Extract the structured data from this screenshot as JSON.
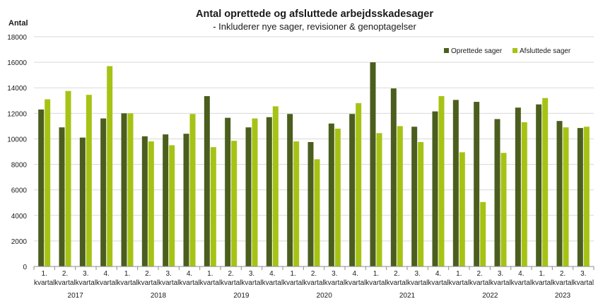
{
  "chart_data": {
    "type": "bar",
    "title": "Antal oprettede og afsluttede arbejdsskadesager",
    "subtitle": "- Inkluderer nye sager, revisioner & genoptagelser",
    "ylabel": "Antal",
    "xlabel": "",
    "ylim": [
      0,
      18000
    ],
    "yticks": [
      "0",
      "2000",
      "4000",
      "6000",
      "8000",
      "10000",
      "12000",
      "14000",
      "16000",
      "18000"
    ],
    "grid": true,
    "legend_position": "top-right",
    "categories": [
      {
        "q1": "1.",
        "q2": "kvartal"
      },
      {
        "q1": "2.",
        "q2": "kvartal"
      },
      {
        "q1": "3.",
        "q2": "kvartal"
      },
      {
        "q1": "4.",
        "q2": "kvartal"
      },
      {
        "q1": "1.",
        "q2": "kvartal"
      },
      {
        "q1": "2.",
        "q2": "kvartal"
      },
      {
        "q1": "3.",
        "q2": "kvartal"
      },
      {
        "q1": "4.",
        "q2": "kvartal"
      },
      {
        "q1": "1.",
        "q2": "kvartal"
      },
      {
        "q1": "2.",
        "q2": "kvartal"
      },
      {
        "q1": "3.",
        "q2": "kvartal"
      },
      {
        "q1": "4.",
        "q2": "kvartal"
      },
      {
        "q1": "1.",
        "q2": "kvartal"
      },
      {
        "q1": "2.",
        "q2": "kvartal"
      },
      {
        "q1": "3.",
        "q2": "kvartal"
      },
      {
        "q1": "4.",
        "q2": "kvartal"
      },
      {
        "q1": "1.",
        "q2": "kvartal"
      },
      {
        "q1": "2.",
        "q2": "kvartal"
      },
      {
        "q1": "3.",
        "q2": "kvartal"
      },
      {
        "q1": "4.",
        "q2": "kvartal"
      },
      {
        "q1": "1.",
        "q2": "kvartal"
      },
      {
        "q1": "2.",
        "q2": "kvartal"
      },
      {
        "q1": "3.",
        "q2": "kvartal"
      },
      {
        "q1": "4.",
        "q2": "kvartal"
      },
      {
        "q1": "1.",
        "q2": "kvartal"
      },
      {
        "q1": "2.",
        "q2": "kvartal"
      },
      {
        "q1": "3.",
        "q2": "kvartal"
      }
    ],
    "years": [
      {
        "label": "2017",
        "quarters": 4
      },
      {
        "label": "2018",
        "quarters": 4
      },
      {
        "label": "2019",
        "quarters": 4
      },
      {
        "label": "2020",
        "quarters": 4
      },
      {
        "label": "2021",
        "quarters": 4
      },
      {
        "label": "2022",
        "quarters": 4
      },
      {
        "label": "2023",
        "quarters": 3
      }
    ],
    "series": [
      {
        "name": "Oprettede sager",
        "color": "#4b5e1e",
        "values": [
          12300,
          10900,
          10100,
          11600,
          12000,
          10200,
          10350,
          10400,
          13350,
          11650,
          10900,
          11700,
          11950,
          9750,
          11200,
          11950,
          16000,
          13950,
          10950,
          12150,
          13050,
          12900,
          11550,
          12450,
          12700,
          11400,
          10850
        ]
      },
      {
        "name": "Afsluttede sager",
        "color": "#a6c315",
        "values": [
          13100,
          13750,
          13450,
          15700,
          12000,
          9800,
          9500,
          11950,
          9350,
          9850,
          11600,
          12550,
          9800,
          8400,
          10800,
          12800,
          10450,
          11000,
          9750,
          13350,
          8950,
          5050,
          8900,
          11300,
          13200,
          10900,
          10950
        ]
      }
    ]
  }
}
